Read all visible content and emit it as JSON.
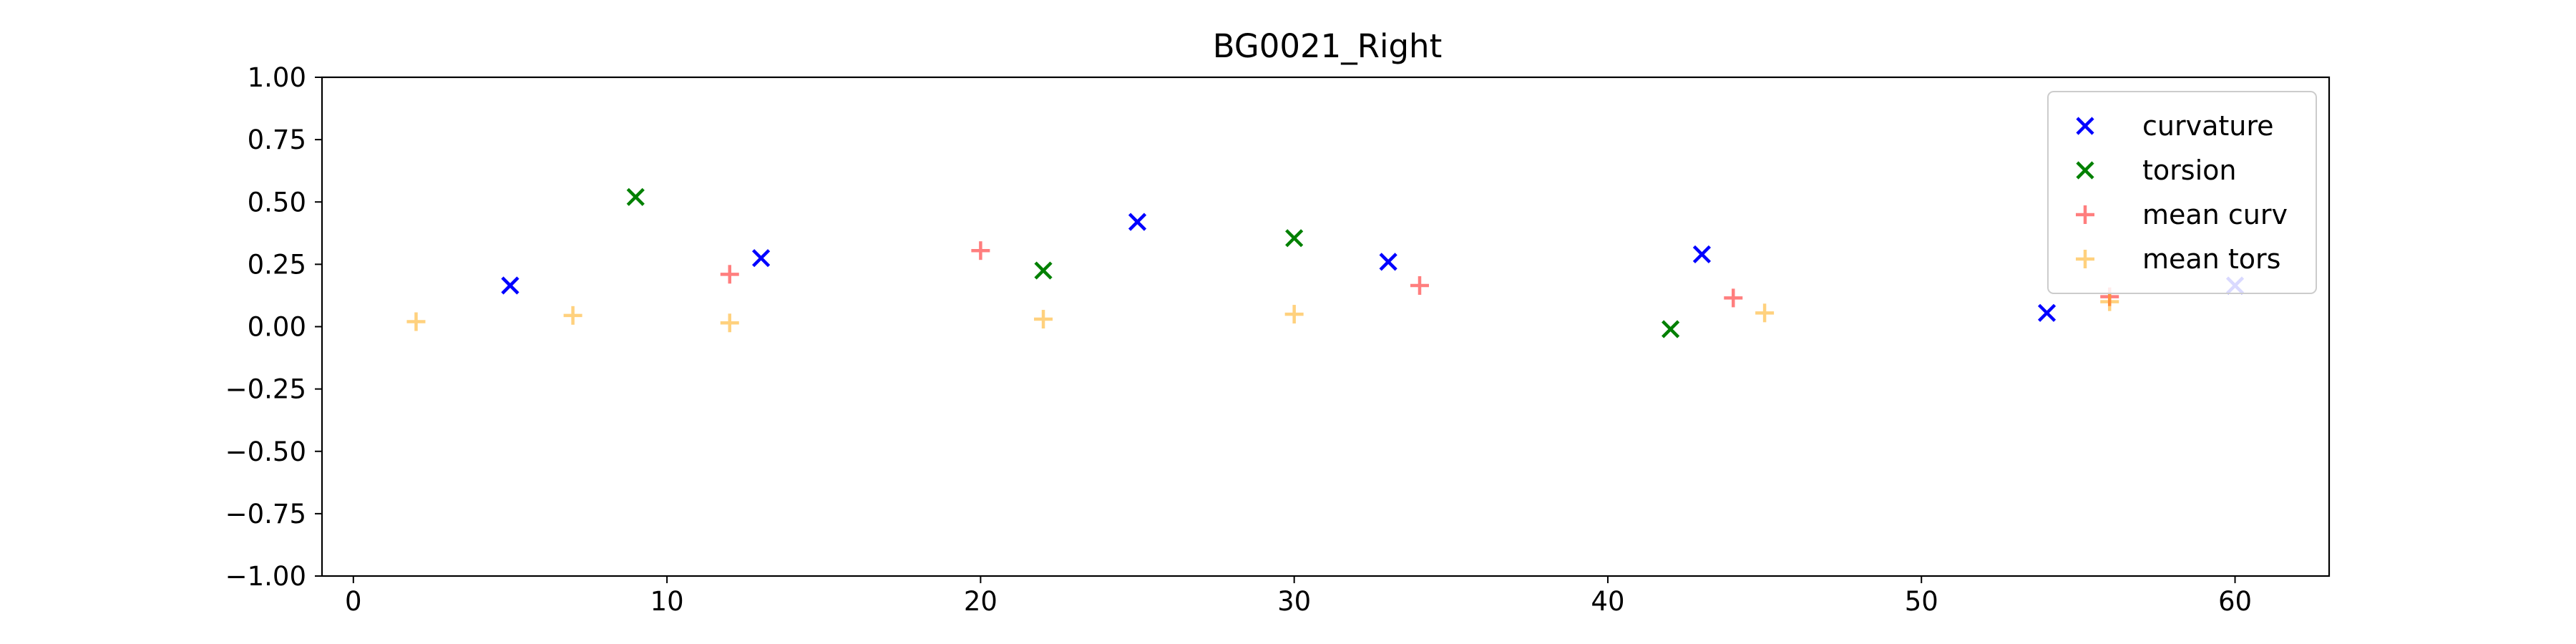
{
  "chart_data": {
    "type": "scatter",
    "title": "BG0021_Right",
    "xlabel": "",
    "ylabel": "",
    "xlim": [
      -1,
      63
    ],
    "ylim": [
      -1.0,
      1.0
    ],
    "x_ticks": [
      0,
      10,
      20,
      30,
      40,
      50,
      60
    ],
    "x_tick_labels": [
      "0",
      "10",
      "20",
      "30",
      "40",
      "50",
      "60"
    ],
    "y_ticks": [
      -1.0,
      -0.75,
      -0.5,
      -0.25,
      0.0,
      0.25,
      0.5,
      0.75,
      1.0
    ],
    "y_tick_labels": [
      "−1.00",
      "−0.75",
      "−0.50",
      "−0.25",
      "0.00",
      "0.25",
      "0.50",
      "0.75",
      "1.00"
    ],
    "grid": false,
    "legend_position": "top-right",
    "series": [
      {
        "name": "curvature",
        "marker": "x",
        "color": "#0000ff",
        "alpha": 1.0,
        "points": [
          [
            5,
            0.165
          ],
          [
            13,
            0.275
          ],
          [
            25,
            0.42
          ],
          [
            33,
            0.26
          ],
          [
            43,
            0.29
          ],
          [
            54,
            0.055
          ],
          [
            60,
            0.165
          ]
        ]
      },
      {
        "name": "torsion",
        "marker": "x",
        "color": "#008000",
        "alpha": 1.0,
        "points": [
          [
            9,
            0.52
          ],
          [
            22,
            0.225
          ],
          [
            30,
            0.355
          ],
          [
            42,
            -0.01
          ]
        ]
      },
      {
        "name": "mean curv",
        "marker": "+",
        "color": "#ff0000",
        "alpha": 0.5,
        "points": [
          [
            12,
            0.21
          ],
          [
            20,
            0.305
          ],
          [
            34,
            0.165
          ],
          [
            44,
            0.115
          ],
          [
            56,
            0.12
          ]
        ]
      },
      {
        "name": "mean tors",
        "marker": "+",
        "color": "#ffa500",
        "alpha": 0.5,
        "points": [
          [
            2,
            0.02
          ],
          [
            7,
            0.045
          ],
          [
            12,
            0.015
          ],
          [
            22,
            0.03
          ],
          [
            30,
            0.05
          ],
          [
            45,
            0.055
          ],
          [
            56,
            0.1
          ]
        ]
      }
    ]
  }
}
